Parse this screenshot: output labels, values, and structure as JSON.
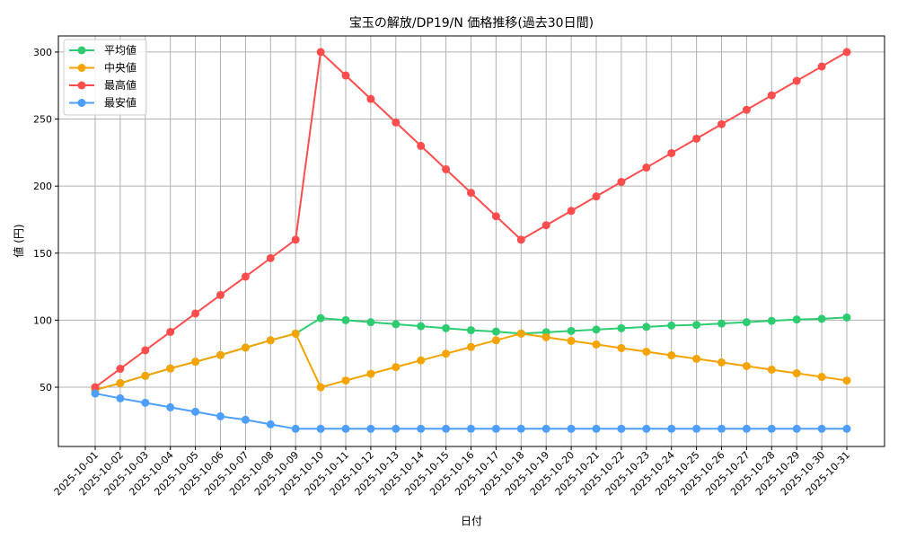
{
  "chart_data": {
    "type": "line",
    "title": "宝玉の解放/DP19/N 価格推移(過去30日間)",
    "xlabel": "日付",
    "ylabel": "値 (円)",
    "ylim": [
      5.8,
      312
    ],
    "yticks": [
      50,
      100,
      150,
      200,
      250,
      300
    ],
    "grid": true,
    "legend_position": "top-left",
    "x": [
      "2025-10-01",
      "2025-10-02",
      "2025-10-03",
      "2025-10-04",
      "2025-10-05",
      "2025-10-06",
      "2025-10-07",
      "2025-10-08",
      "2025-10-09",
      "2025-10-10",
      "2025-10-11",
      "2025-10-12",
      "2025-10-13",
      "2025-10-14",
      "2025-10-15",
      "2025-10-16",
      "2025-10-17",
      "2025-10-18",
      "2025-10-19",
      "2025-10-20",
      "2025-10-21",
      "2025-10-22",
      "2025-10-23",
      "2025-10-24",
      "2025-10-25",
      "2025-10-26",
      "2025-10-27",
      "2025-10-28",
      "2025-10-29",
      "2025-10-30",
      "2025-10-31"
    ],
    "series": [
      {
        "name": "平均値",
        "color": "#2ecc71",
        "values": [
          48,
          53,
          58.5,
          64,
          69,
          74,
          79.5,
          85,
          90,
          101.5,
          100,
          98.5,
          97,
          95.5,
          94,
          92.5,
          91.5,
          90,
          91,
          92,
          93,
          94,
          95,
          96,
          96.5,
          97.5,
          98.5,
          99.5,
          100.5,
          101,
          102
        ]
      },
      {
        "name": "中央値",
        "color": "#f5a300",
        "values": [
          48,
          53,
          58.5,
          64,
          69,
          74,
          79.5,
          85,
          90,
          50,
          55,
          60,
          65,
          70,
          75,
          80,
          85,
          90,
          87.3,
          84.6,
          81.9,
          79.2,
          76.5,
          73.8,
          71.2,
          68.5,
          65.8,
          63.1,
          60.4,
          57.7,
          55
        ]
      },
      {
        "name": "最高値",
        "color": "#ff4d4d",
        "values": [
          50,
          63.75,
          77.5,
          91.25,
          105,
          118.75,
          132.5,
          146.25,
          160,
          300,
          282.5,
          265,
          247.5,
          230,
          212.5,
          195,
          177.5,
          160,
          170.8,
          181.5,
          192.3,
          203.1,
          213.8,
          224.6,
          235.4,
          246.2,
          256.9,
          267.7,
          278.5,
          289.2,
          300
        ]
      },
      {
        "name": "最安値",
        "color": "#4d9eff",
        "values": [
          45.3,
          41.7,
          38.4,
          35,
          31.7,
          28.3,
          25.7,
          22.3,
          19,
          19,
          19,
          19,
          19,
          19,
          19,
          19,
          19,
          19,
          19,
          19,
          19,
          19,
          19,
          19,
          19,
          19,
          19,
          19,
          19,
          19,
          19
        ]
      }
    ]
  }
}
